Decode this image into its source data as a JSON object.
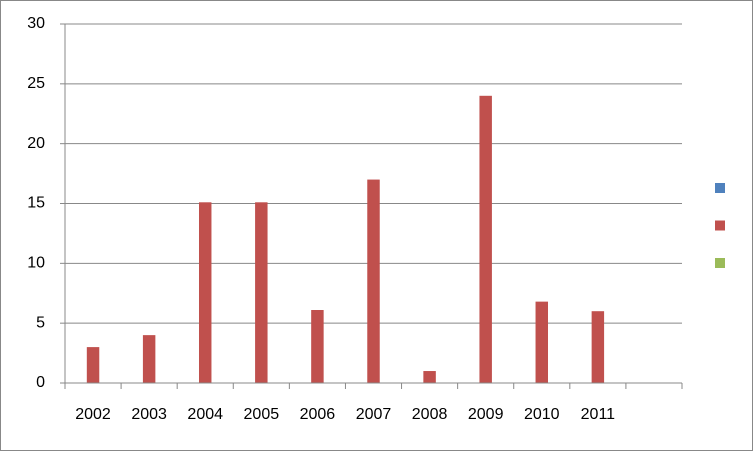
{
  "chart_data": {
    "type": "bar",
    "categories": [
      "2002",
      "2003",
      "2004",
      "2005",
      "2006",
      "2007",
      "2008",
      "2009",
      "2010",
      "2011",
      null
    ],
    "series": [
      {
        "color": "#4f81bd",
        "values": [
          null,
          null,
          null,
          null,
          null,
          null,
          null,
          null,
          null,
          null,
          null
        ]
      },
      {
        "color": "#c0504d",
        "values": [
          3,
          4,
          15.1,
          15.1,
          6.1,
          17,
          1,
          24,
          6.8,
          6,
          null
        ]
      },
      {
        "color": "#9bbb59",
        "values": [
          null,
          null,
          null,
          null,
          null,
          null,
          null,
          null,
          null,
          null,
          null
        ]
      }
    ],
    "ylim": [
      0,
      30
    ],
    "yticks": [
      0,
      5,
      10,
      15,
      20,
      25,
      30
    ],
    "grid": true,
    "legend": "right"
  }
}
